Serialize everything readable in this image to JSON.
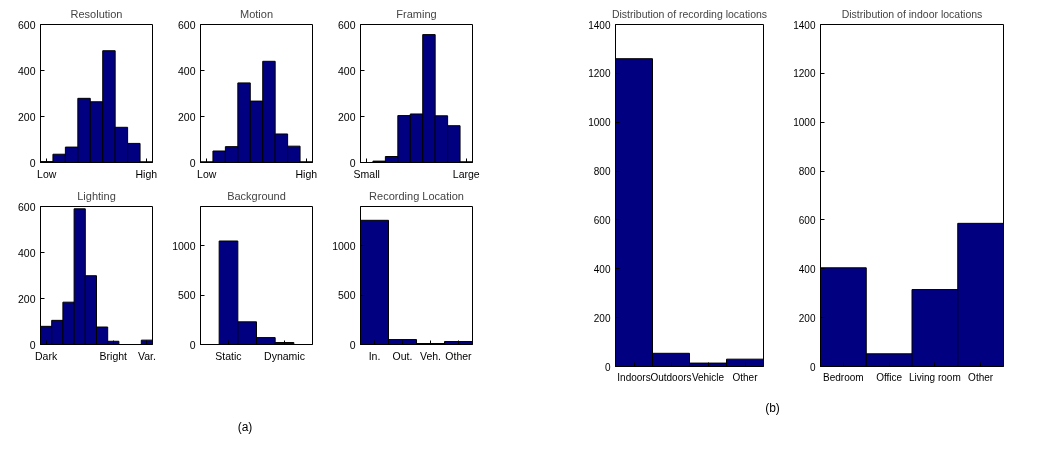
{
  "chart_data": [
    {
      "type": "bar",
      "title": "Resolution",
      "categories": [
        "Low",
        null,
        null,
        null,
        null,
        null,
        null,
        null,
        "High"
      ],
      "values": [
        4,
        36,
        67,
        279,
        264,
        486,
        153,
        83,
        3
      ],
      "color": "#000080",
      "ylim": [
        0,
        600
      ],
      "yticks": [
        0,
        200,
        400,
        600
      ],
      "annotations": [
        "(a)"
      ]
    },
    {
      "type": "bar",
      "title": "Motion",
      "categories": [
        "Low",
        null,
        null,
        null,
        null,
        null,
        null,
        null,
        "High"
      ],
      "values": [
        3,
        50,
        69,
        346,
        267,
        440,
        124,
        71,
        3
      ],
      "color": "#000080",
      "ylim": [
        0,
        600
      ],
      "yticks": [
        0,
        200,
        400,
        600
      ]
    },
    {
      "type": "bar",
      "title": "Framing",
      "categories": [
        "Small",
        null,
        null,
        null,
        null,
        null,
        null,
        null,
        "Large"
      ],
      "values": [
        null,
        6,
        26,
        204,
        211,
        556,
        203,
        160,
        3
      ],
      "color": "#000080",
      "ylim": [
        0,
        600
      ],
      "yticks": [
        0,
        200,
        400,
        600
      ]
    },
    {
      "type": "bar",
      "title": "Lighting",
      "categories": [
        "Dark",
        null,
        null,
        null,
        null,
        null,
        "Bright",
        null,
        null,
        "Var."
      ],
      "values": [
        79,
        105,
        184,
        590,
        299,
        76,
        14,
        null,
        null,
        19
      ],
      "color": "#000080",
      "ylim": [
        0,
        600
      ],
      "yticks": [
        0,
        200,
        400,
        600
      ]
    },
    {
      "type": "bar",
      "title": "Background",
      "categories": [
        null,
        "Static",
        null,
        null,
        "Dynamic",
        null
      ],
      "values": [
        null,
        1050,
        230,
        70,
        20,
        null
      ],
      "color": "#000080",
      "ylim": [
        0,
        1400
      ],
      "yticks": [
        0,
        500,
        1000
      ]
    },
    {
      "type": "bar",
      "title": "Recording Location",
      "categories": [
        "In.",
        "Out.",
        "Veh.",
        "Other"
      ],
      "values": [
        1260,
        50,
        10,
        30
      ],
      "color": "#000080",
      "ylim": [
        0,
        1400
      ],
      "yticks": [
        0,
        500,
        1000
      ]
    },
    {
      "type": "bar",
      "title": "Distribution of recording locations",
      "categories": [
        "Indoors",
        "Outdoors",
        "Vehicle",
        "Other"
      ],
      "values": [
        1260,
        54,
        14,
        30
      ],
      "color": "#000080",
      "ylim": [
        0,
        1400
      ],
      "yticks": [
        0,
        200,
        400,
        600,
        800,
        1000,
        1200,
        1400
      ],
      "annotations": [
        "(b)"
      ]
    },
    {
      "type": "bar",
      "title": "Distribution of indoor locations",
      "categories": [
        "Bedroom",
        "Office",
        "Living room",
        "Other"
      ],
      "values": [
        404,
        52,
        315,
        586
      ],
      "color": "#000080",
      "ylim": [
        0,
        1400
      ],
      "yticks": [
        0,
        200,
        400,
        600,
        800,
        1000,
        1200,
        1400
      ]
    }
  ]
}
